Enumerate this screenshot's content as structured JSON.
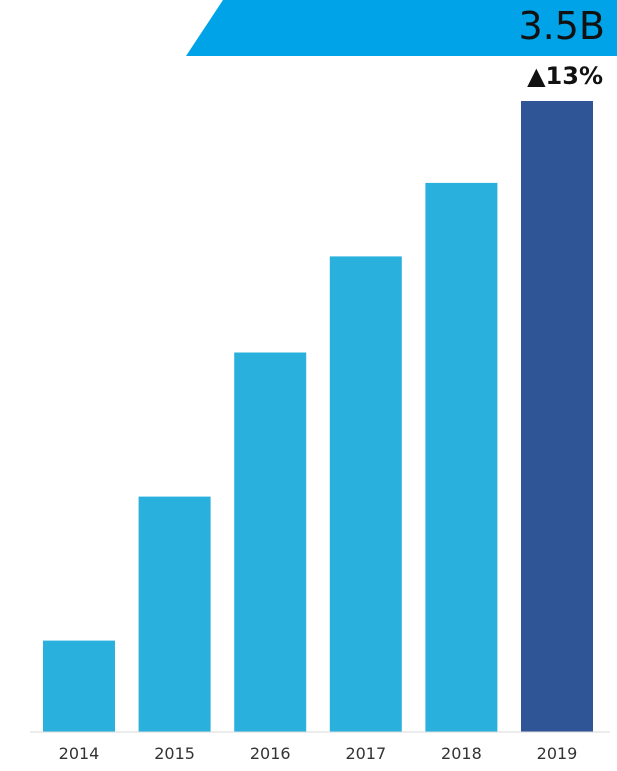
{
  "banner": {
    "value": "3.5B",
    "change": "▲13%",
    "color": "#00a3e8"
  },
  "chart_data": {
    "type": "bar",
    "categories": [
      "2014",
      "2015",
      "2016",
      "2017",
      "2018",
      "2019"
    ],
    "values": [
      0.97,
      2.5,
      4.03,
      5.05,
      5.83,
      6.7
    ],
    "ylim": [
      0,
      6.7
    ],
    "grid": false,
    "legend": "none",
    "bar_color": "#29b0dd",
    "highlight_color": "#2f5597",
    "highlight_index": 5
  }
}
